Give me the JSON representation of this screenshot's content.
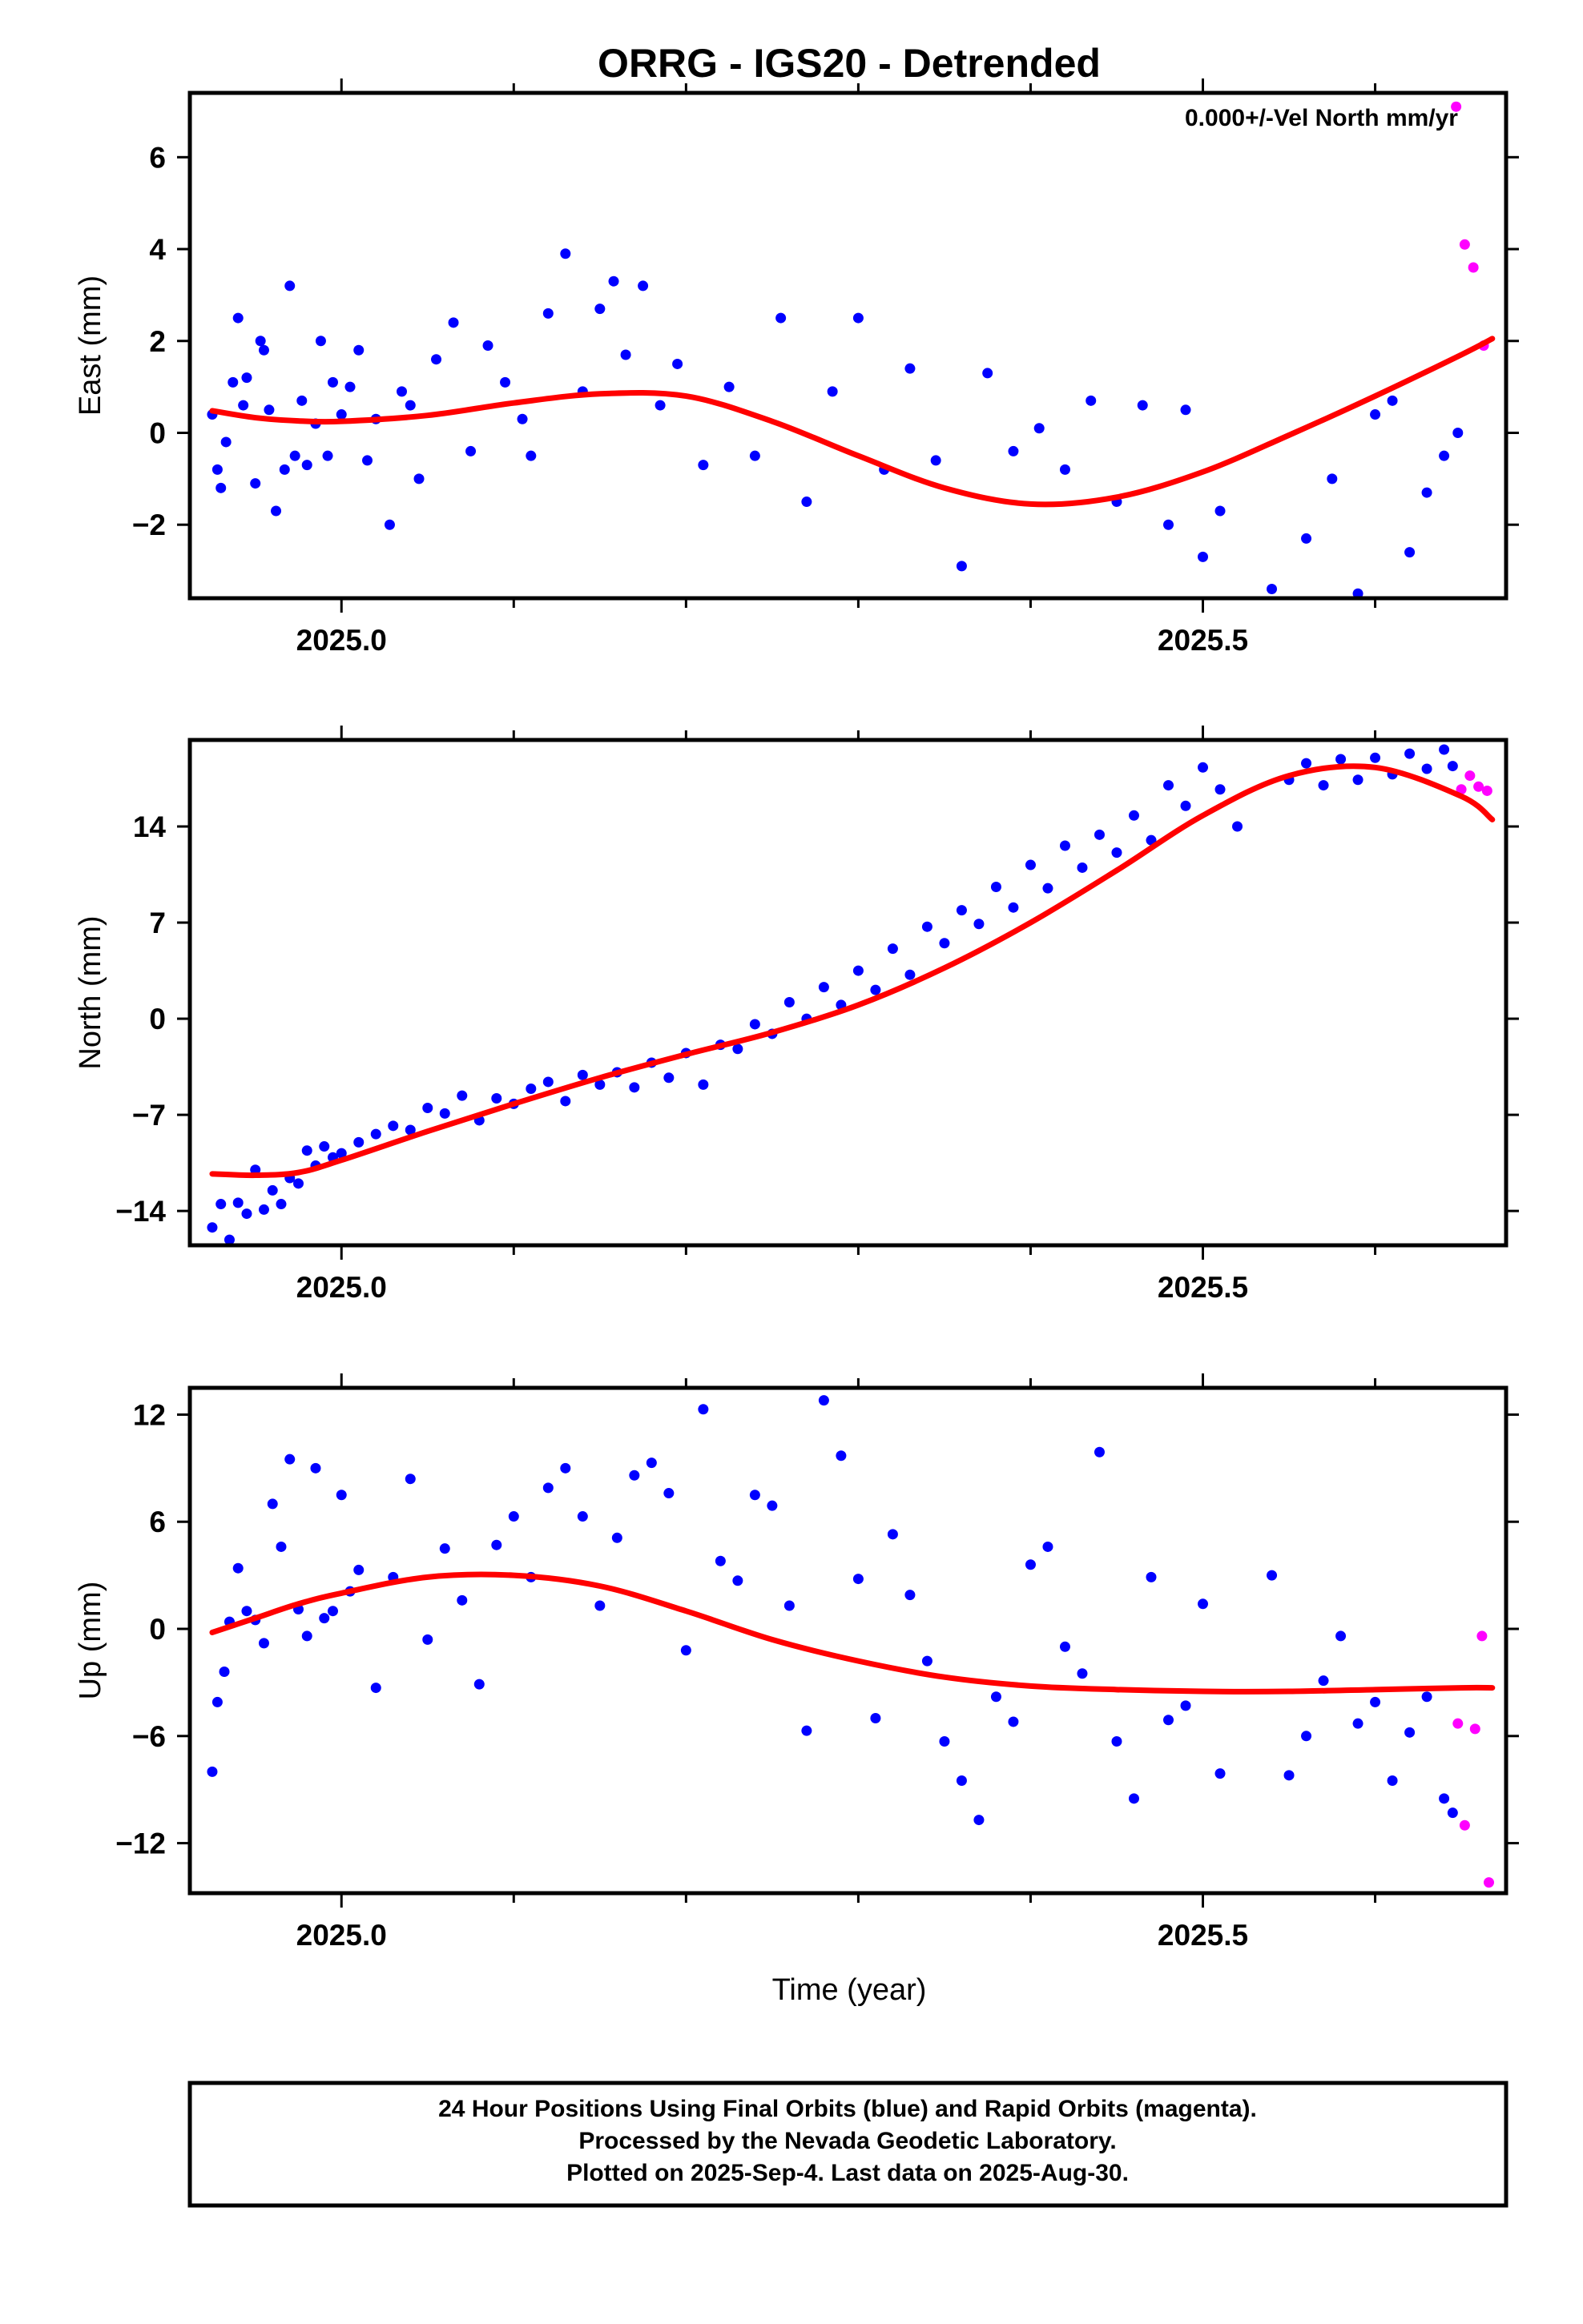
{
  "chart_data": {
    "type": "scatter",
    "title": "ORRG - IGS20 - Detrended",
    "xlabel": "Time (year)",
    "xlim": [
      2024.912,
      2025.676
    ],
    "x_ticks": [
      2025.0,
      2025.5
    ],
    "x_tick_labels": [
      "2025.0",
      "2025.5"
    ],
    "series_colors": {
      "final": "#0000ff",
      "rapid": "#ff00ff",
      "model": "#ff0000"
    },
    "panels": [
      {
        "ylabel": "East (mm)",
        "ylim": [
          -3.6,
          7.4
        ],
        "y_ticks": [
          -2,
          0,
          2,
          4,
          6
        ],
        "y_tick_labels": [
          "−2",
          "0",
          "2",
          "4",
          "6"
        ],
        "annotation": "0.000+/-Vel North mm/yr",
        "model_curve": {
          "x": [
            2024.925,
            2024.95,
            2024.975,
            2025.0,
            2025.05,
            2025.1,
            2025.15,
            2025.2,
            2025.25,
            2025.3,
            2025.35,
            2025.4,
            2025.45,
            2025.5,
            2025.55,
            2025.6,
            2025.65,
            2025.668
          ],
          "y": [
            0.48,
            0.33,
            0.26,
            0.25,
            0.38,
            0.65,
            0.85,
            0.8,
            0.25,
            -0.5,
            -1.2,
            -1.55,
            -1.4,
            -0.85,
            -0.05,
            0.8,
            1.7,
            2.05
          ]
        },
        "final_points": {
          "x": [
            2024.925,
            2024.928,
            2024.93,
            2024.933,
            2024.937,
            2024.94,
            2024.943,
            2024.945,
            2024.95,
            2024.953,
            2024.955,
            2024.958,
            2024.962,
            2024.967,
            2024.97,
            2024.973,
            2024.977,
            2024.98,
            2024.985,
            2024.988,
            2024.992,
            2024.995,
            2025.0,
            2025.005,
            2025.01,
            2025.015,
            2025.02,
            2025.028,
            2025.035,
            2025.04,
            2025.045,
            2025.055,
            2025.065,
            2025.075,
            2025.085,
            2025.095,
            2025.105,
            2025.11,
            2025.12,
            2025.13,
            2025.14,
            2025.15,
            2025.158,
            2025.165,
            2025.175,
            2025.185,
            2025.195,
            2025.21,
            2025.225,
            2025.24,
            2025.255,
            2025.27,
            2025.285,
            2025.3,
            2025.315,
            2025.33,
            2025.345,
            2025.36,
            2025.375,
            2025.39,
            2025.405,
            2025.42,
            2025.435,
            2025.45,
            2025.465,
            2025.48,
            2025.49,
            2025.5,
            2025.51,
            2025.54,
            2025.56,
            2025.575,
            2025.59,
            2025.6,
            2025.61,
            2025.62,
            2025.63,
            2025.64,
            2025.648
          ],
          "y": [
            0.4,
            -0.8,
            -1.2,
            -0.2,
            1.1,
            2.5,
            0.6,
            1.2,
            -1.1,
            2.0,
            1.8,
            0.5,
            -1.7,
            -0.8,
            3.2,
            -0.5,
            0.7,
            -0.7,
            0.2,
            2.0,
            -0.5,
            1.1,
            0.4,
            1.0,
            1.8,
            -0.6,
            0.3,
            -2.0,
            0.9,
            0.6,
            -1.0,
            1.6,
            2.4,
            -0.4,
            1.9,
            1.1,
            0.3,
            -0.5,
            2.6,
            3.9,
            0.9,
            2.7,
            3.3,
            1.7,
            3.2,
            0.6,
            1.5,
            -0.7,
            1.0,
            -0.5,
            2.5,
            -1.5,
            0.9,
            2.5,
            -0.8,
            1.4,
            -0.6,
            -2.9,
            1.3,
            -0.4,
            0.1,
            -0.8,
            0.7,
            -1.5,
            0.6,
            -2.0,
            0.5,
            -2.7,
            -1.7,
            -3.4,
            -2.3,
            -1.0,
            -3.5,
            0.4,
            0.7,
            -2.6,
            -1.3,
            -0.5,
            0.0
          ]
        },
        "rapid_points": {
          "x": [
            2025.647,
            2025.652,
            2025.657,
            2025.663
          ],
          "y": [
            7.1,
            4.1,
            3.6,
            1.9
          ]
        }
      },
      {
        "ylabel": "North (mm)",
        "ylim": [
          -16.5,
          20.3
        ],
        "y_ticks": [
          -14,
          -7,
          0,
          7,
          14
        ],
        "y_tick_labels": [
          "−14",
          "−7",
          "0",
          "7",
          "14"
        ],
        "model_curve": {
          "x": [
            2024.925,
            2024.95,
            2024.975,
            2025.0,
            2025.05,
            2025.1,
            2025.15,
            2025.2,
            2025.25,
            2025.3,
            2025.35,
            2025.4,
            2025.45,
            2025.5,
            2025.55,
            2025.6,
            2025.65,
            2025.668
          ],
          "y": [
            -11.3,
            -11.4,
            -11.2,
            -10.3,
            -8.2,
            -6.2,
            -4.3,
            -2.6,
            -1.0,
            1.0,
            3.7,
            7.0,
            10.8,
            14.8,
            17.7,
            18.3,
            16.2,
            14.5
          ]
        },
        "final_points": {
          "x": [
            2024.925,
            2024.93,
            2024.935,
            2024.94,
            2024.945,
            2024.95,
            2024.955,
            2024.96,
            2024.965,
            2024.97,
            2024.975,
            2024.98,
            2024.985,
            2024.99,
            2024.995,
            2025.0,
            2025.01,
            2025.02,
            2025.03,
            2025.04,
            2025.05,
            2025.06,
            2025.07,
            2025.08,
            2025.09,
            2025.1,
            2025.11,
            2025.12,
            2025.13,
            2025.14,
            2025.15,
            2025.16,
            2025.17,
            2025.18,
            2025.19,
            2025.2,
            2025.21,
            2025.22,
            2025.23,
            2025.24,
            2025.25,
            2025.26,
            2025.27,
            2025.28,
            2025.29,
            2025.3,
            2025.31,
            2025.32,
            2025.33,
            2025.34,
            2025.35,
            2025.36,
            2025.37,
            2025.38,
            2025.39,
            2025.4,
            2025.41,
            2025.42,
            2025.43,
            2025.44,
            2025.45,
            2025.46,
            2025.47,
            2025.48,
            2025.49,
            2025.5,
            2025.51,
            2025.52,
            2025.55,
            2025.56,
            2025.57,
            2025.58,
            2025.59,
            2025.6,
            2025.61,
            2025.62,
            2025.63,
            2025.64,
            2025.645
          ],
          "y": [
            -15.2,
            -13.5,
            -16.1,
            -13.4,
            -14.2,
            -11.0,
            -13.9,
            -12.5,
            -13.5,
            -11.6,
            -12.0,
            -9.6,
            -10.7,
            -9.3,
            -10.1,
            -9.8,
            -9.0,
            -8.4,
            -7.8,
            -8.1,
            -6.5,
            -6.9,
            -5.6,
            -7.4,
            -5.8,
            -6.2,
            -5.1,
            -4.6,
            -6.0,
            -4.1,
            -4.8,
            -3.9,
            -5.0,
            -3.2,
            -4.3,
            -2.5,
            -4.8,
            -1.9,
            -2.2,
            -0.4,
            -1.1,
            1.2,
            0.0,
            2.3,
            1.0,
            3.5,
            2.1,
            5.1,
            3.2,
            6.7,
            5.5,
            7.9,
            6.9,
            9.6,
            8.1,
            11.2,
            9.5,
            12.6,
            11.0,
            13.4,
            12.1,
            14.8,
            13.0,
            17.0,
            15.5,
            18.3,
            16.7,
            14.0,
            17.4,
            18.6,
            17.0,
            18.9,
            17.4,
            19.0,
            17.8,
            19.3,
            18.2,
            19.6,
            18.4
          ]
        },
        "rapid_points": {
          "x": [
            2025.65,
            2025.655,
            2025.66,
            2025.665
          ],
          "y": [
            16.7,
            17.7,
            16.9,
            16.6
          ]
        }
      },
      {
        "ylabel": "Up (mm)",
        "ylim": [
          -14.8,
          13.5
        ],
        "y_ticks": [
          -12,
          -6,
          0,
          6,
          12
        ],
        "y_tick_labels": [
          "−12",
          "−6",
          "0",
          "6",
          "12"
        ],
        "model_curve": {
          "x": [
            2024.925,
            2024.95,
            2024.975,
            2025.0,
            2025.05,
            2025.1,
            2025.15,
            2025.2,
            2025.25,
            2025.3,
            2025.35,
            2025.4,
            2025.45,
            2025.5,
            2025.55,
            2025.6,
            2025.65,
            2025.668
          ],
          "y": [
            -0.2,
            0.6,
            1.4,
            2.0,
            2.9,
            3.0,
            2.4,
            1.0,
            -0.6,
            -1.8,
            -2.7,
            -3.2,
            -3.4,
            -3.5,
            -3.5,
            -3.4,
            -3.3,
            -3.3
          ]
        },
        "final_points": {
          "x": [
            2024.925,
            2024.928,
            2024.932,
            2024.935,
            2024.94,
            2024.945,
            2024.95,
            2024.955,
            2024.96,
            2024.965,
            2024.97,
            2024.975,
            2024.98,
            2024.985,
            2024.99,
            2024.995,
            2025.0,
            2025.005,
            2025.01,
            2025.02,
            2025.03,
            2025.04,
            2025.05,
            2025.06,
            2025.07,
            2025.08,
            2025.09,
            2025.1,
            2025.11,
            2025.12,
            2025.13,
            2025.14,
            2025.15,
            2025.16,
            2025.17,
            2025.18,
            2025.19,
            2025.2,
            2025.21,
            2025.22,
            2025.23,
            2025.24,
            2025.25,
            2025.26,
            2025.27,
            2025.28,
            2025.29,
            2025.3,
            2025.31,
            2025.32,
            2025.33,
            2025.34,
            2025.35,
            2025.36,
            2025.37,
            2025.38,
            2025.39,
            2025.4,
            2025.41,
            2025.42,
            2025.43,
            2025.44,
            2025.45,
            2025.46,
            2025.47,
            2025.48,
            2025.49,
            2025.5,
            2025.51,
            2025.54,
            2025.55,
            2025.56,
            2025.57,
            2025.58,
            2025.59,
            2025.6,
            2025.61,
            2025.62,
            2025.63,
            2025.64,
            2025.645
          ],
          "y": [
            -8.0,
            -4.1,
            -2.4,
            0.4,
            3.4,
            1.0,
            0.5,
            -0.8,
            7.0,
            4.6,
            9.5,
            1.1,
            -0.4,
            9.0,
            0.6,
            1.0,
            7.5,
            2.1,
            3.3,
            -3.3,
            2.9,
            8.4,
            -0.6,
            4.5,
            1.6,
            -3.1,
            4.7,
            6.3,
            2.9,
            7.9,
            9.0,
            6.3,
            1.3,
            5.1,
            8.6,
            9.3,
            7.6,
            -1.2,
            12.3,
            3.8,
            2.7,
            7.5,
            6.9,
            1.3,
            -5.7,
            12.8,
            9.7,
            2.8,
            -5.0,
            5.3,
            1.9,
            -1.8,
            -6.3,
            -8.5,
            -10.7,
            -3.8,
            -5.2,
            3.6,
            4.6,
            -1.0,
            -2.5,
            9.9,
            -6.3,
            -9.5,
            2.9,
            -5.1,
            -4.3,
            1.4,
            -8.1,
            3.0,
            -8.2,
            -6.0,
            -2.9,
            -0.4,
            -5.3,
            -4.1,
            -8.5,
            -5.8,
            -3.8,
            -9.5,
            -10.3
          ]
        },
        "rapid_points": {
          "x": [
            2025.648,
            2025.652,
            2025.658,
            2025.662,
            2025.666
          ],
          "y": [
            -5.3,
            -11.0,
            -5.6,
            -0.4,
            -14.2
          ]
        }
      }
    ]
  },
  "footer": {
    "line1": "24 Hour Positions Using Final Orbits (blue) and Rapid Orbits (magenta).",
    "line2": "Processed by the Nevada Geodetic Laboratory.",
    "line3": "Plotted on 2025-Sep-4. Last data on 2025-Aug-30."
  }
}
